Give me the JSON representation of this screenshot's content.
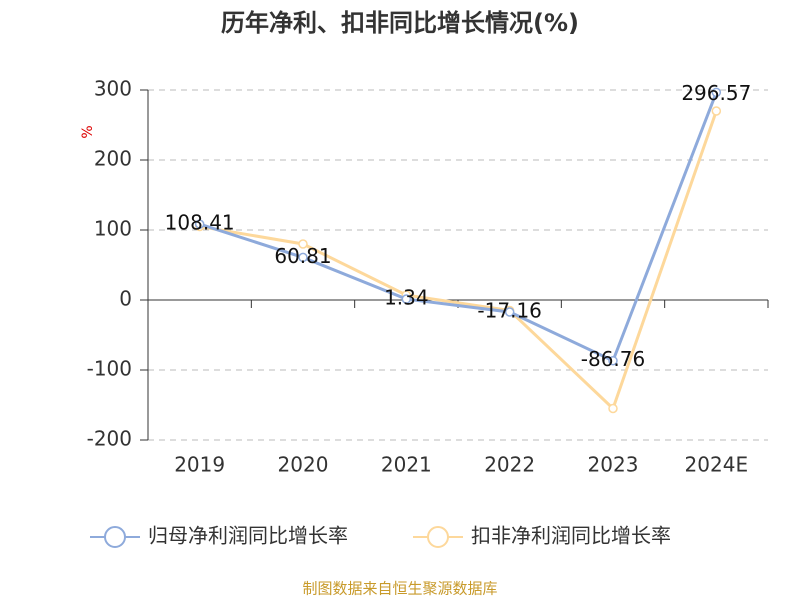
{
  "chart_data": {
    "type": "line",
    "title": "历年净利、扣非同比增长情况(%)",
    "y_label": "%",
    "categories": [
      "2019",
      "2020",
      "2021",
      "2022",
      "2023",
      "2024E"
    ],
    "series": [
      {
        "name": "归母净利润同比增长率",
        "color": "#8eaadb",
        "values": [
          108.41,
          60.81,
          1.34,
          -17.16,
          -86.76,
          296.57
        ]
      },
      {
        "name": "扣非净利润同比增长率",
        "color": "#fdd89b",
        "values": [
          105,
          80,
          7,
          -15,
          -155,
          270
        ]
      }
    ],
    "ylim": [
      -200,
      300
    ],
    "yticks": [
      -200,
      -100,
      0,
      100,
      200,
      300
    ],
    "grid": true,
    "source": "制图数据来自恒生聚源数据库"
  }
}
